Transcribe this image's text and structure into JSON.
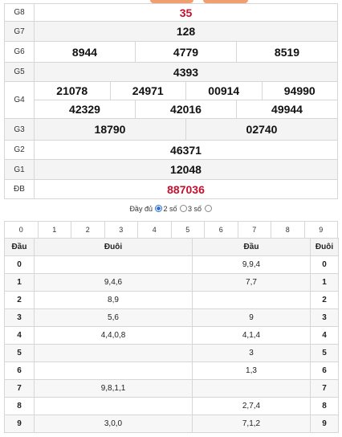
{
  "results": {
    "G8": {
      "label": "G8",
      "numbers": [
        "35"
      ]
    },
    "G7": {
      "label": "G7",
      "numbers": [
        "128"
      ]
    },
    "G6": {
      "label": "G6",
      "numbers": [
        "8944",
        "4779",
        "8519"
      ]
    },
    "G5": {
      "label": "G5",
      "numbers": [
        "4393"
      ]
    },
    "G4": {
      "label": "G4",
      "row1": [
        "21078",
        "24971",
        "00914",
        "94990"
      ],
      "row2": [
        "42329",
        "42016",
        "49944"
      ]
    },
    "G3": {
      "label": "G3",
      "numbers": [
        "18790",
        "02740"
      ]
    },
    "G2": {
      "label": "G2",
      "numbers": [
        "46371"
      ]
    },
    "G1": {
      "label": "G1",
      "numbers": [
        "12048"
      ]
    },
    "DB": {
      "label": "ĐB",
      "numbers": [
        "887036"
      ]
    }
  },
  "accent_red": "#c8102e",
  "options": {
    "full": "Đầy đủ",
    "two": "2 số",
    "three": "3 số",
    "selected": "2 số"
  },
  "digits": [
    "0",
    "1",
    "2",
    "3",
    "4",
    "5",
    "6",
    "7",
    "8",
    "9"
  ],
  "loto": {
    "headers": {
      "dau": "Đầu",
      "duoi": "Đuôi",
      "dau2": "Đầu",
      "duoi2": "Đuôi"
    },
    "rows": [
      {
        "d": "0",
        "duoi": "",
        "dau": "9,9,4",
        "d2": "0"
      },
      {
        "d": "1",
        "duoi": "9,4,6",
        "dau": "7,7",
        "d2": "1"
      },
      {
        "d": "2",
        "duoi": "8,9",
        "dau": "",
        "d2": "2"
      },
      {
        "d": "3",
        "duoi": "5,6",
        "dau": "9",
        "d2": "3"
      },
      {
        "d": "4",
        "duoi": "4,4,0,8",
        "dau": "4,1,4",
        "d2": "4"
      },
      {
        "d": "5",
        "duoi": "",
        "dau": "3",
        "d2": "5"
      },
      {
        "d": "6",
        "duoi": "",
        "dau": "1,3",
        "d2": "6"
      },
      {
        "d": "7",
        "duoi": "9,8,1,1",
        "dau": "",
        "d2": "7"
      },
      {
        "d": "8",
        "duoi": "",
        "dau": "2,7,4",
        "d2": "8"
      },
      {
        "d": "9",
        "duoi": "3,0,0",
        "dau": "7,1,2",
        "d2": "9"
      }
    ]
  }
}
